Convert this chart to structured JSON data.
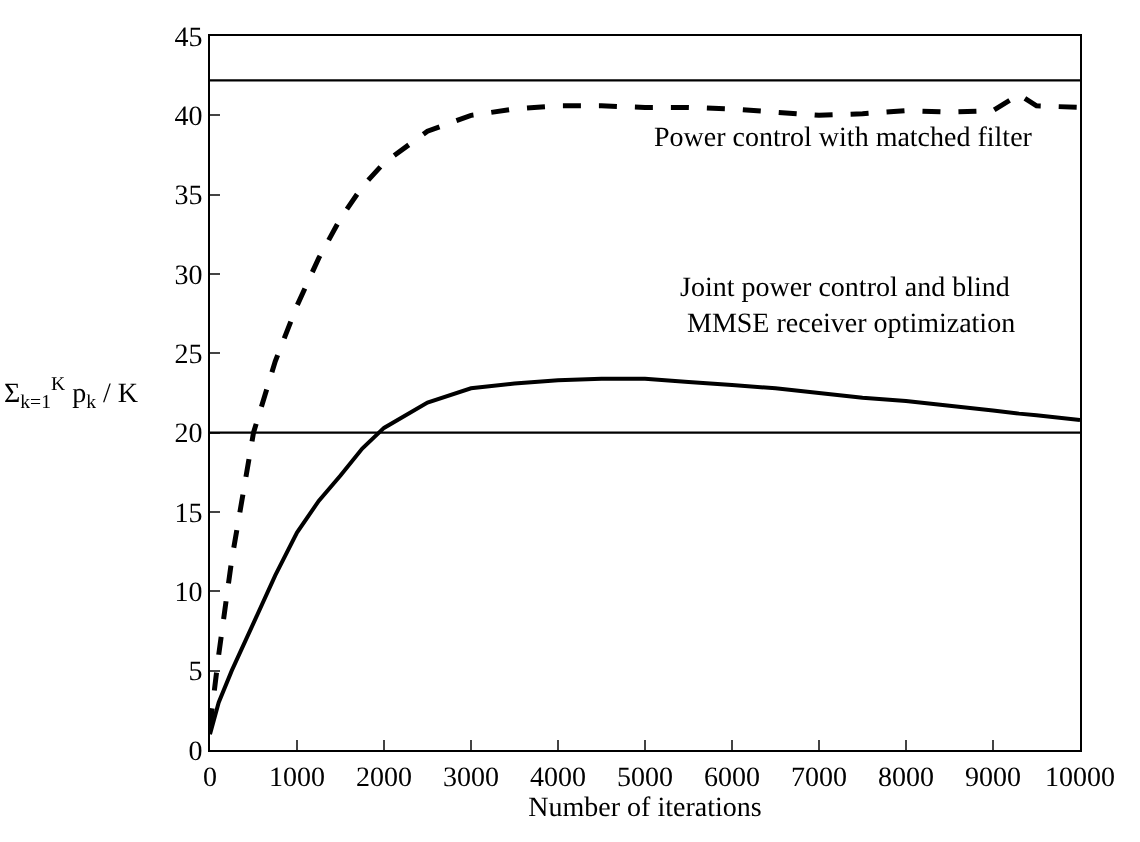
{
  "chart_data": {
    "type": "line",
    "xlabel": "Number of iterations",
    "ylabel": "Σ$_{k=1}$$^{K}$ p$_{k}$ / K",
    "x": [
      0,
      100,
      250,
      500,
      750,
      1000,
      1250,
      1500,
      1750,
      2000,
      2500,
      3000,
      3500,
      4000,
      4500,
      5000,
      5500,
      6000,
      6500,
      7000,
      7500,
      8000,
      8500,
      9000,
      9300,
      9500,
      10000
    ],
    "series": [
      {
        "name": "Power control with matched filter",
        "color": "#000000",
        "line_style": "dashed",
        "values": [
          1.5,
          6,
          12,
          20,
          24.5,
          28,
          31,
          33.5,
          35.5,
          37,
          39,
          40,
          40.4,
          40.6,
          40.6,
          40.5,
          40.5,
          40.4,
          40.2,
          40,
          40.1,
          40.3,
          40.2,
          40.3,
          41.3,
          40.6,
          40.5
        ]
      },
      {
        "name": "Joint power control and blind MMSE receiver optimization",
        "color": "#000000",
        "line_style": "solid",
        "values": [
          1,
          3,
          5,
          8,
          11,
          13.7,
          15.7,
          17.3,
          19,
          20.3,
          21.9,
          22.8,
          23.1,
          23.3,
          23.4,
          23.4,
          23.2,
          23,
          22.8,
          22.5,
          22.2,
          22,
          21.7,
          21.4,
          21.2,
          21.1,
          20.8
        ]
      }
    ],
    "ref_lines": [
      {
        "axis": "y",
        "value": 42.2,
        "color": "#000000"
      },
      {
        "axis": "y",
        "value": 20,
        "color": "#000000"
      }
    ],
    "xlim": [
      0,
      10000
    ],
    "xticks": [
      0,
      1000,
      2000,
      3000,
      4000,
      5000,
      6000,
      7000,
      8000,
      9000,
      10000
    ],
    "ylim": [
      0,
      45
    ],
    "yticks": [
      0,
      5,
      10,
      15,
      20,
      25,
      30,
      35,
      40,
      45
    ],
    "grid": false,
    "legend": false
  }
}
